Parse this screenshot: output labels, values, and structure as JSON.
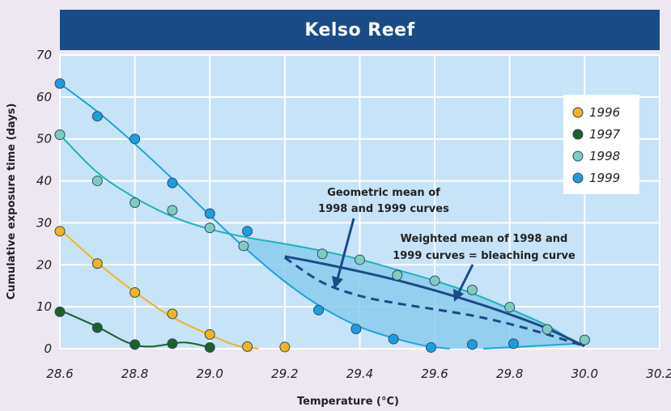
{
  "chart_data": {
    "type": "scatter",
    "title": "Kelso Reef",
    "xlabel": "Temperature",
    "xlabel_unit": "(°C)",
    "ylabel": "Cumulative exposure time (days)",
    "xlim": [
      28.6,
      30.2
    ],
    "ylim": [
      0,
      70
    ],
    "xticks": [
      "28.6",
      "28.8",
      "29.0",
      "29.2",
      "29.4",
      "29.6",
      "29.8",
      "30.0",
      "30.2"
    ],
    "yticks": [
      "0",
      "10",
      "20",
      "30",
      "40",
      "50",
      "60",
      "70"
    ],
    "grid": true,
    "legend_position": "top-right",
    "series": [
      {
        "name": "1996",
        "color": "#f2b31c",
        "line_color": "#f2b31c",
        "points": [
          [
            28.6,
            28
          ],
          [
            28.7,
            20.3
          ],
          [
            28.8,
            13.4
          ],
          [
            28.9,
            8.3
          ],
          [
            29.0,
            3.4
          ],
          [
            29.1,
            0.5
          ],
          [
            29.2,
            0.4
          ]
        ],
        "curve": [
          [
            28.6,
            28.5
          ],
          [
            28.7,
            20.5
          ],
          [
            28.8,
            13.5
          ],
          [
            28.9,
            7.5
          ],
          [
            29.0,
            3.3
          ],
          [
            29.07,
            0.8
          ],
          [
            29.13,
            0
          ]
        ]
      },
      {
        "name": "1997",
        "color": "#1d5e2a",
        "line_color": "#1d5e2a",
        "points": [
          [
            28.6,
            8.8
          ],
          [
            28.7,
            5.0
          ],
          [
            28.8,
            1.0
          ],
          [
            28.9,
            1.2
          ],
          [
            29.0,
            0.3
          ]
        ],
        "curve": [
          [
            28.6,
            9.2
          ],
          [
            28.7,
            5.2
          ],
          [
            28.78,
            1.5
          ],
          [
            28.84,
            0.5
          ],
          [
            28.93,
            1.5
          ],
          [
            29.0,
            0.3
          ]
        ]
      },
      {
        "name": "1998",
        "color": "#7fccbf",
        "line_color": "#1fb2b8",
        "points": [
          [
            28.6,
            51
          ],
          [
            28.7,
            40
          ],
          [
            28.8,
            34.8
          ],
          [
            28.9,
            33
          ],
          [
            29.0,
            28.8
          ],
          [
            29.09,
            24.5
          ],
          [
            29.3,
            22.6
          ],
          [
            29.4,
            21.2
          ],
          [
            29.5,
            17.5
          ],
          [
            29.6,
            16.2
          ],
          [
            29.7,
            14
          ],
          [
            29.8,
            9.9
          ],
          [
            29.9,
            4.6
          ],
          [
            30.0,
            2.1
          ]
        ],
        "curve": [
          [
            28.6,
            51
          ],
          [
            28.7,
            42
          ],
          [
            28.8,
            36
          ],
          [
            28.9,
            31.5
          ],
          [
            29.0,
            28.5
          ],
          [
            29.1,
            26.5
          ],
          [
            29.2,
            25
          ],
          [
            29.3,
            23.3
          ],
          [
            29.4,
            21.3
          ],
          [
            29.5,
            18.8
          ],
          [
            29.6,
            16.2
          ],
          [
            29.7,
            13.2
          ],
          [
            29.8,
            9.5
          ],
          [
            29.9,
            5.5
          ],
          [
            29.98,
            1.2
          ]
        ]
      },
      {
        "name": "1999",
        "color": "#1e9ddc",
        "line_color": "#1ea3d6",
        "points": [
          [
            28.6,
            63.2
          ],
          [
            28.7,
            55.4
          ],
          [
            28.8,
            50
          ],
          [
            28.9,
            39.5
          ],
          [
            29.0,
            32.2
          ],
          [
            29.1,
            28
          ],
          [
            29.29,
            9.2
          ],
          [
            29.39,
            4.7
          ],
          [
            29.49,
            2.3
          ],
          [
            29.59,
            0.3
          ],
          [
            29.7,
            1.0
          ],
          [
            29.81,
            1.2
          ]
        ],
        "curve": [
          [
            28.6,
            63.2
          ],
          [
            28.7,
            56.5
          ],
          [
            28.8,
            48.8
          ],
          [
            28.9,
            40.5
          ],
          [
            29.0,
            31.8
          ],
          [
            29.1,
            23.5
          ],
          [
            29.2,
            16
          ],
          [
            29.3,
            9.8
          ],
          [
            29.4,
            5.2
          ],
          [
            29.5,
            2.3
          ],
          [
            29.58,
            0.6
          ],
          [
            29.64,
            0
          ]
        ]
      }
    ],
    "annotations": [
      {
        "text": "Geometric mean of",
        "text2": "1998 and 1999 curves"
      },
      {
        "text": "Weighted mean of 1998 and",
        "text2": "1999 curves = bleaching curve"
      }
    ],
    "geometric_mean_curve": [
      [
        29.2,
        21.7
      ],
      [
        29.3,
        15.8
      ],
      [
        29.4,
        12.6
      ],
      [
        29.5,
        10.8
      ],
      [
        29.6,
        9.4
      ],
      [
        29.7,
        7.9
      ],
      [
        29.8,
        5.9
      ],
      [
        29.9,
        3.4
      ],
      [
        30.0,
        0.6
      ]
    ],
    "weighted_mean_curve": [
      [
        29.2,
        22
      ],
      [
        29.3,
        20.3
      ],
      [
        29.4,
        18.4
      ],
      [
        29.5,
        16.3
      ],
      [
        29.6,
        13.9
      ],
      [
        29.7,
        11.2
      ],
      [
        29.8,
        8.2
      ],
      [
        29.9,
        4.8
      ],
      [
        30.0,
        0.6
      ]
    ],
    "shaded_region_color": "#8ccbee",
    "plot_background": "#c7e3f7",
    "grid_color": "#ffffff",
    "mean_curve_color": "#1b4b86"
  }
}
